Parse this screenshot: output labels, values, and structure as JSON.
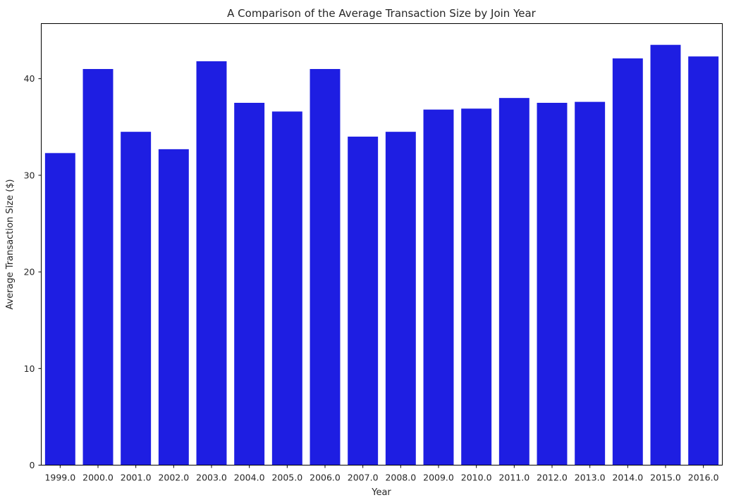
{
  "chart_data": {
    "type": "bar",
    "title": "A Comparison of the Average Transaction Size by Join Year",
    "xlabel": "Year",
    "ylabel": "Average Transaction Size ($)",
    "categories": [
      "1999.0",
      "2000.0",
      "2001.0",
      "2002.0",
      "2003.0",
      "2004.0",
      "2005.0",
      "2006.0",
      "2007.0",
      "2008.0",
      "2009.0",
      "2010.0",
      "2011.0",
      "2012.0",
      "2013.0",
      "2014.0",
      "2015.0",
      "2016.0"
    ],
    "values": [
      32.3,
      41.0,
      34.5,
      32.7,
      41.8,
      37.5,
      36.6,
      41.0,
      34.0,
      34.5,
      36.8,
      36.9,
      38.0,
      37.5,
      37.6,
      42.1,
      43.5,
      42.3
    ],
    "ylim": [
      0,
      45.7
    ],
    "yticks": [
      0,
      10,
      20,
      30,
      40
    ],
    "grid": false,
    "bar_color": "#1e1ee2"
  }
}
